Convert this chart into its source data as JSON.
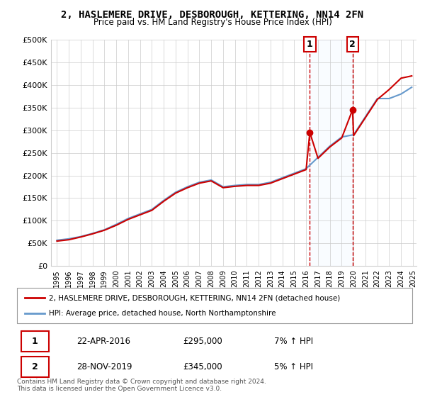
{
  "title": "2, HASLEMERE DRIVE, DESBOROUGH, KETTERING, NN14 2FN",
  "subtitle": "Price paid vs. HM Land Registry's House Price Index (HPI)",
  "legend_line1": "2, HASLEMERE DRIVE, DESBOROUGH, KETTERING, NN14 2FN (detached house)",
  "legend_line2": "HPI: Average price, detached house, North Northamptonshire",
  "annotation1_label": "1",
  "annotation1_date": "22-APR-2016",
  "annotation1_price": "£295,000",
  "annotation1_hpi": "7% ↑ HPI",
  "annotation2_label": "2",
  "annotation2_date": "28-NOV-2019",
  "annotation2_price": "£345,000",
  "annotation2_hpi": "5% ↑ HPI",
  "footnote": "Contains HM Land Registry data © Crown copyright and database right 2024.\nThis data is licensed under the Open Government Licence v3.0.",
  "red_color": "#cc0000",
  "blue_color": "#aaccee",
  "blue_line_color": "#6699cc",
  "shaded_color": "#ddeeff",
  "background_color": "#ffffff",
  "grid_color": "#cccccc",
  "ylim": [
    0,
    500000
  ],
  "yticks": [
    0,
    50000,
    100000,
    150000,
    200000,
    250000,
    300000,
    350000,
    400000,
    450000,
    500000
  ],
  "ytick_labels": [
    "£0",
    "£50K",
    "£100K",
    "£150K",
    "£200K",
    "£250K",
    "£300K",
    "£350K",
    "£400K",
    "£450K",
    "£500K"
  ],
  "xtick_years": [
    1995,
    1996,
    1997,
    1998,
    1999,
    2000,
    2001,
    2002,
    2003,
    2004,
    2005,
    2006,
    2007,
    2008,
    2009,
    2010,
    2011,
    2012,
    2013,
    2014,
    2015,
    2016,
    2017,
    2018,
    2019,
    2020,
    2021,
    2022,
    2023,
    2024,
    2025
  ],
  "sale1_year": 2016.31,
  "sale1_price": 295000,
  "sale2_year": 2019.91,
  "sale2_price": 345000,
  "hpi_years": [
    1995,
    1996,
    1997,
    1998,
    1999,
    2000,
    2001,
    2002,
    2003,
    2004,
    2005,
    2006,
    2007,
    2008,
    2009,
    2010,
    2011,
    2012,
    2013,
    2014,
    2015,
    2016,
    2017,
    2018,
    2019,
    2020,
    2021,
    2022,
    2023,
    2024,
    2024.9
  ],
  "hpi_values": [
    57000,
    60000,
    65000,
    72000,
    80000,
    92000,
    105000,
    115000,
    125000,
    145000,
    163000,
    175000,
    185000,
    190000,
    175000,
    178000,
    180000,
    180000,
    185000,
    195000,
    205000,
    215000,
    240000,
    265000,
    285000,
    290000,
    330000,
    370000,
    370000,
    380000,
    395000
  ],
  "red_years": [
    1995,
    1996,
    1997,
    1998,
    1999,
    2000,
    2001,
    2002,
    2003,
    2004,
    2005,
    2006,
    2007,
    2008,
    2009,
    2010,
    2011,
    2012,
    2013,
    2014,
    2015,
    2016,
    2016.31,
    2017,
    2018,
    2019,
    2019.91,
    2020,
    2021,
    2022,
    2023,
    2024,
    2024.9
  ],
  "red_values": [
    55000,
    58000,
    64000,
    71000,
    79000,
    90000,
    103000,
    113000,
    123000,
    143000,
    161000,
    173000,
    183000,
    188000,
    173000,
    176000,
    178000,
    178000,
    183000,
    193000,
    203000,
    213000,
    295000,
    238000,
    263000,
    283000,
    345000,
    288000,
    328000,
    368000,
    390000,
    415000,
    420000
  ]
}
